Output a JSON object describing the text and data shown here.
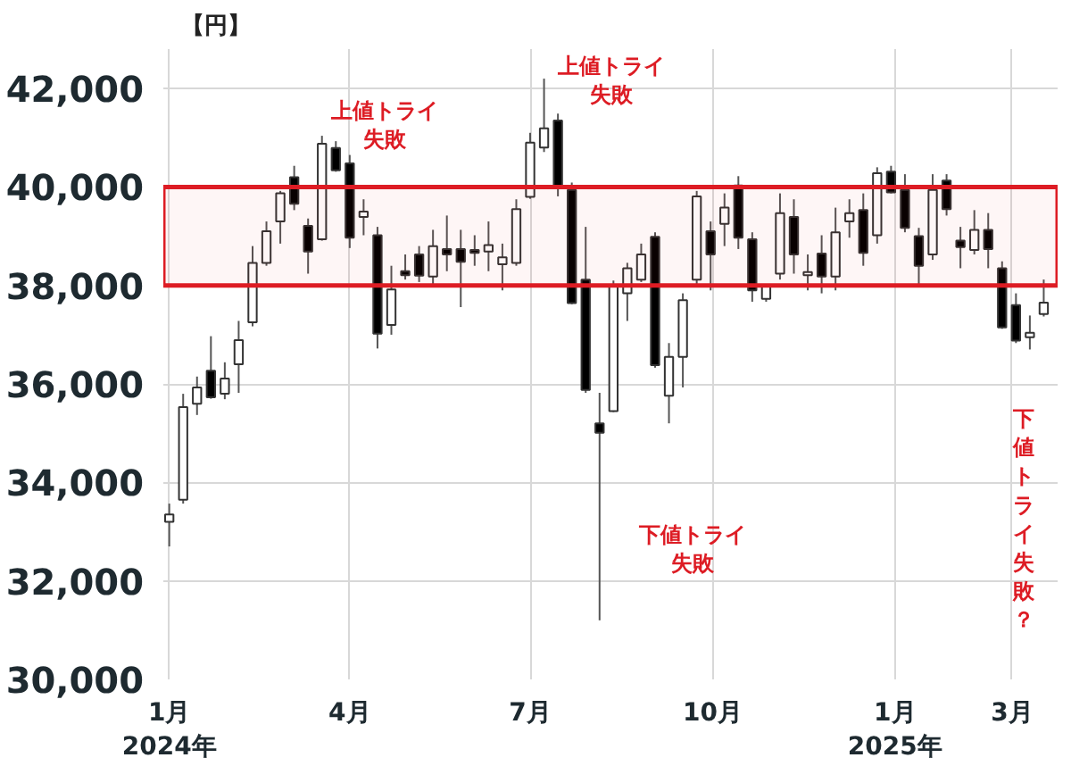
{
  "chart_data": {
    "type": "candlestick",
    "ylabel": "【円】",
    "x": [
      "2024-01-01",
      "2024-01-08",
      "2024-01-15",
      "2024-01-22",
      "2024-01-29",
      "2024-02-05",
      "2024-02-12",
      "2024-02-19",
      "2024-02-26",
      "2024-03-04",
      "2024-03-11",
      "2024-03-18",
      "2024-03-25",
      "2024-04-01",
      "2024-04-08",
      "2024-04-15",
      "2024-04-22",
      "2024-04-29",
      "2024-05-06",
      "2024-05-13",
      "2024-05-20",
      "2024-05-27",
      "2024-06-03",
      "2024-06-10",
      "2024-06-17",
      "2024-06-24",
      "2024-07-01",
      "2024-07-08",
      "2024-07-15",
      "2024-07-22",
      "2024-07-29",
      "2024-08-05",
      "2024-08-12",
      "2024-08-19",
      "2024-08-26",
      "2024-09-02",
      "2024-09-09",
      "2024-09-16",
      "2024-09-23",
      "2024-09-30",
      "2024-10-07",
      "2024-10-14",
      "2024-10-21",
      "2024-10-28",
      "2024-11-04",
      "2024-11-11",
      "2024-11-18",
      "2024-11-25",
      "2024-12-02",
      "2024-12-09",
      "2024-12-16",
      "2024-12-23",
      "2024-12-30",
      "2025-01-06",
      "2025-01-13",
      "2025-01-20",
      "2025-01-27",
      "2025-02-03",
      "2025-02-10",
      "2025-02-17",
      "2025-02-24",
      "2025-03-03",
      "2025-03-10",
      "2025-03-17"
    ],
    "ohlc": [
      [
        33200,
        33570,
        32700,
        33350
      ],
      [
        33650,
        35800,
        33570,
        35530
      ],
      [
        35600,
        36150,
        35370,
        35930
      ],
      [
        36270,
        36970,
        35700,
        35730
      ],
      [
        35800,
        36440,
        35690,
        36110
      ],
      [
        36400,
        37280,
        35820,
        36890
      ],
      [
        37250,
        38800,
        37170,
        38460
      ],
      [
        38460,
        39300,
        38400,
        39100
      ],
      [
        39300,
        39920,
        38850,
        39870
      ],
      [
        40200,
        40430,
        39530,
        39660
      ],
      [
        39210,
        39360,
        38240,
        38690
      ],
      [
        38940,
        41040,
        38910,
        40880
      ],
      [
        40790,
        40930,
        40310,
        40340
      ],
      [
        40480,
        40650,
        38760,
        38970
      ],
      [
        39390,
        39750,
        39020,
        39500
      ],
      [
        39020,
        39190,
        36720,
        37020
      ],
      [
        37200,
        38400,
        37000,
        37920
      ],
      [
        38290,
        38630,
        38120,
        38210
      ],
      [
        38630,
        38800,
        38070,
        38200
      ],
      [
        38180,
        39130,
        37960,
        38800
      ],
      [
        38740,
        39420,
        38290,
        38630
      ],
      [
        38740,
        39130,
        37560,
        38480
      ],
      [
        38720,
        39020,
        38400,
        38660
      ],
      [
        38690,
        39300,
        38290,
        38820
      ],
      [
        38430,
        38850,
        37900,
        38570
      ],
      [
        38460,
        39750,
        38400,
        39550
      ],
      [
        39800,
        41100,
        39760,
        40900
      ],
      [
        40800,
        42200,
        40710,
        41190
      ],
      [
        41350,
        41490,
        39810,
        40020
      ],
      [
        39940,
        40090,
        37620,
        37640
      ],
      [
        38120,
        39190,
        35820,
        35880
      ],
      [
        35200,
        35820,
        31200,
        35010
      ],
      [
        35450,
        38100,
        35430,
        38010
      ],
      [
        37840,
        38460,
        37280,
        38350
      ],
      [
        38120,
        38850,
        38070,
        38630
      ],
      [
        38990,
        39080,
        36330,
        36380
      ],
      [
        35760,
        36830,
        35200,
        36550
      ],
      [
        36550,
        37840,
        35930,
        37700
      ],
      [
        38120,
        39920,
        38010,
        39810
      ],
      [
        39100,
        39300,
        37900,
        38630
      ],
      [
        39250,
        39870,
        38800,
        39580
      ],
      [
        40030,
        40220,
        38740,
        38970
      ],
      [
        38940,
        39080,
        37670,
        37900
      ],
      [
        37730,
        38010,
        37670,
        38010
      ],
      [
        38240,
        39870,
        38120,
        39470
      ],
      [
        39390,
        39750,
        38240,
        38630
      ],
      [
        38210,
        38630,
        37900,
        38270
      ],
      [
        38650,
        39020,
        37840,
        38180
      ],
      [
        38180,
        39580,
        37900,
        39080
      ],
      [
        39300,
        39750,
        38970,
        39470
      ],
      [
        39530,
        39870,
        38400,
        38660
      ],
      [
        39020,
        40400,
        38850,
        40280
      ],
      [
        40310,
        40430,
        39870,
        39890
      ],
      [
        39940,
        40260,
        39080,
        39170
      ],
      [
        39000,
        39170,
        38010,
        38400
      ],
      [
        38630,
        40260,
        38520,
        39940
      ],
      [
        40130,
        40260,
        39420,
        39550
      ],
      [
        38910,
        39190,
        38350,
        38780
      ],
      [
        38720,
        39530,
        38630,
        39130
      ],
      [
        39130,
        39470,
        38350,
        38740
      ],
      [
        38350,
        38490,
        37120,
        37150
      ],
      [
        37600,
        37840,
        36830,
        36880
      ],
      [
        36950,
        37390,
        36700,
        37040
      ],
      [
        37420,
        38120,
        37370,
        37650
      ]
    ],
    "xlim": [
      "2023-12-29",
      "2025-03-24"
    ],
    "xticks": [
      {
        "value": "2024-01-01",
        "label": "1月\n2024年"
      },
      {
        "value": "2024-04-01",
        "label": "4月"
      },
      {
        "value": "2024-07-01",
        "label": "7月"
      },
      {
        "value": "2024-10-01",
        "label": "10月"
      },
      {
        "value": "2025-01-01",
        "label": "1月\n2025年"
      },
      {
        "value": "2025-03-01",
        "label": "3月"
      }
    ],
    "ylim": [
      30000,
      42800
    ],
    "yticks": [
      {
        "value": 30000,
        "label": "30,000"
      },
      {
        "value": 32000,
        "label": "32,000"
      },
      {
        "value": 34000,
        "label": "34,000"
      },
      {
        "value": 36000,
        "label": "36,000"
      },
      {
        "value": 38000,
        "label": "38,000"
      },
      {
        "value": 40000,
        "label": "40,000"
      },
      {
        "value": 42000,
        "label": "42,000"
      }
    ],
    "grid": true,
    "bands": [
      {
        "axis": "y",
        "from": 38000,
        "to": 40000,
        "color": "#dd1c24"
      }
    ],
    "annotations": [
      "上値トライ失敗",
      "上値トライ失敗",
      "下値トライ失敗",
      "下値トライ失敗？"
    ]
  }
}
